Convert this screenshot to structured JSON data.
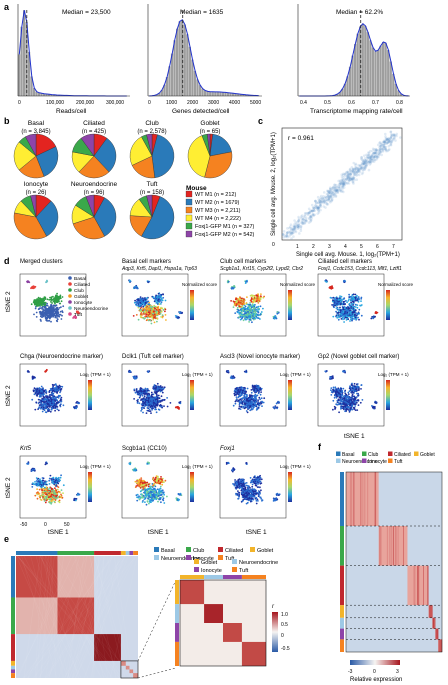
{
  "panel_letters": [
    "a",
    "b",
    "c",
    "d",
    "e",
    "f"
  ],
  "panel_a": [
    {
      "median_label": "Median = 23,500",
      "xlabel": "Reads/cell",
      "ticks": [
        "0",
        "100,000",
        "200,000",
        "300,000"
      ]
    },
    {
      "median_label": "Median = 1635",
      "xlabel": "Genes detected/cell",
      "ticks": [
        "0",
        "1000",
        "2000",
        "3000",
        "4000",
        "5000"
      ]
    },
    {
      "median_label": "Median = 62.2%",
      "xlabel": "Transcriptome mapping rate/cell",
      "ticks": [
        "0.4",
        "0.5",
        "0.6",
        "0.7",
        "0.8"
      ]
    }
  ],
  "panel_b": {
    "pies": [
      {
        "name": "Basal",
        "n": "(n = 3,845)",
        "fractions": [
          0.18,
          0.26,
          0.2,
          0.22,
          0.06,
          0.08
        ]
      },
      {
        "name": "Ciliated",
        "n": "(n = 425)",
        "fractions": [
          0.1,
          0.28,
          0.24,
          0.16,
          0.12,
          0.1
        ]
      },
      {
        "name": "Club",
        "n": "(n = 2,578)",
        "fractions": [
          0.04,
          0.44,
          0.2,
          0.24,
          0.04,
          0.04
        ]
      },
      {
        "name": "Goblet",
        "n": "(n = 65)",
        "fractions": [
          0.02,
          0.2,
          0.32,
          0.4,
          0.04,
          0.02
        ]
      },
      {
        "name": "Ionocyte",
        "n": "(n = 26)",
        "fractions": [
          0.12,
          0.3,
          0.36,
          0.1,
          0.08,
          0.04
        ]
      },
      {
        "name": "Neuroendocrine",
        "n": "(n = 96)",
        "fractions": [
          0.08,
          0.34,
          0.28,
          0.14,
          0.1,
          0.06
        ]
      },
      {
        "name": "Tuft",
        "n": "(n = 158)",
        "fractions": [
          0.06,
          0.52,
          0.18,
          0.14,
          0.06,
          0.04
        ]
      }
    ],
    "legend_title": "Mouse",
    "legend": [
      {
        "label": "WT M1 (n = 212)",
        "color": "#e32420"
      },
      {
        "label": "WT M2 (n = 1679)",
        "color": "#2a7ab9"
      },
      {
        "label": "WT M3 (n = 2,211)",
        "color": "#f58220"
      },
      {
        "label": "WT M4 (n = 2,222)",
        "color": "#ffee33"
      },
      {
        "label": "Foxj1-GFP M1 (n = 327)",
        "color": "#3aa84a"
      },
      {
        "label": "Foxj1-GFP M2 (n = 542)",
        "color": "#8e44a8"
      }
    ]
  },
  "panel_c": {
    "r_label": "r = 0.961",
    "xlabel": "Single cell avg. Mouse. 1, log₂(TPM+1)",
    "ylabel": "Single cell avg. Mouse. 2, log₂(TPM+1)",
    "ticks": [
      "0",
      "1",
      "2",
      "3",
      "4",
      "5",
      "6",
      "7"
    ]
  },
  "panel_d": {
    "titles": [
      "Merged clusters",
      "Basal cell markers",
      "Club cell markers",
      "Ciliated cell markers",
      "Chga (Neuroendocrine marker)",
      "Dclk1 (Tuft cell marker)",
      "Ascl3 (Novel ionocyte marker)",
      "Gp2 (Novel goblet cell marker)",
      "Krt5",
      "Scgb1a1 (CC10)",
      "Foxj1"
    ],
    "subtitles": [
      "",
      "Aqp3, Krt5, Dapl1, Hspa1a, Trp63",
      "Scgb1a1, Krt15, Cyp2f2, Lypd2, Cbr2",
      "Foxj1, Ccdc153, Ccdc113, Mlf1, Lztfl1",
      "",
      "",
      "",
      "",
      "",
      "",
      ""
    ],
    "cluster_legend": [
      "Basal",
      "Ciliated",
      "Club",
      "Goblet",
      "Ionocyte",
      "Neuroendocrine",
      "Tuft"
    ],
    "cluster_colors": [
      "#3a5fb0",
      "#e8413a",
      "#2e9e45",
      "#f39a1e",
      "#8a3fa0",
      "#6bc2c9",
      "#d94a8a"
    ],
    "ylabel": "tSNE 2",
    "xlabel": "tSNE 1",
    "xticks": [
      "-50",
      "0",
      "50"
    ],
    "yticks": [
      "50",
      "0",
      "-50"
    ],
    "scale_label_1": "Normalized score",
    "scale_label_2": "Log₂ (TPM + 1)"
  },
  "panel_e": {
    "legend": [
      {
        "label": "Basal",
        "color": "#2a7ab9"
      },
      {
        "label": "Club",
        "color": "#3aa84a"
      },
      {
        "label": "Ciliated",
        "color": "#c0282e"
      },
      {
        "label": "Goblet",
        "color": "#f2b42a"
      },
      {
        "label": "Neuroendocrine",
        "color": "#9dc9e6"
      },
      {
        "label": "Ionocyte",
        "color": "#8e44a8"
      },
      {
        "label": "Tuft",
        "color": "#f58220"
      }
    ],
    "inset_legend": [
      {
        "label": "Goblet",
        "color": "#f2b42a"
      },
      {
        "label": "Neuroendocrine",
        "color": "#9dc9e6"
      },
      {
        "label": "Ionocyte",
        "color": "#8e44a8"
      },
      {
        "label": "Tuft",
        "color": "#f58220"
      }
    ],
    "r_symbol": "r",
    "scale_ticks": [
      "1.0",
      "0.5",
      "0",
      "-0.5"
    ]
  },
  "panel_f": {
    "legend": [
      {
        "label": "Basal",
        "color": "#2a7ab9"
      },
      {
        "label": "Club",
        "color": "#3aa84a"
      },
      {
        "label": "Ciliated",
        "color": "#c0282e"
      },
      {
        "label": "Goblet",
        "color": "#f2b42a"
      },
      {
        "label": "Neuroendocrine",
        "color": "#9dc9e6"
      },
      {
        "label": "Ionocyte",
        "color": "#8e44a8"
      },
      {
        "label": "Tuft",
        "color": "#f58220"
      }
    ],
    "scale_ticks": [
      "-3",
      "0",
      "3"
    ],
    "scale_label": "Relative expression"
  }
}
